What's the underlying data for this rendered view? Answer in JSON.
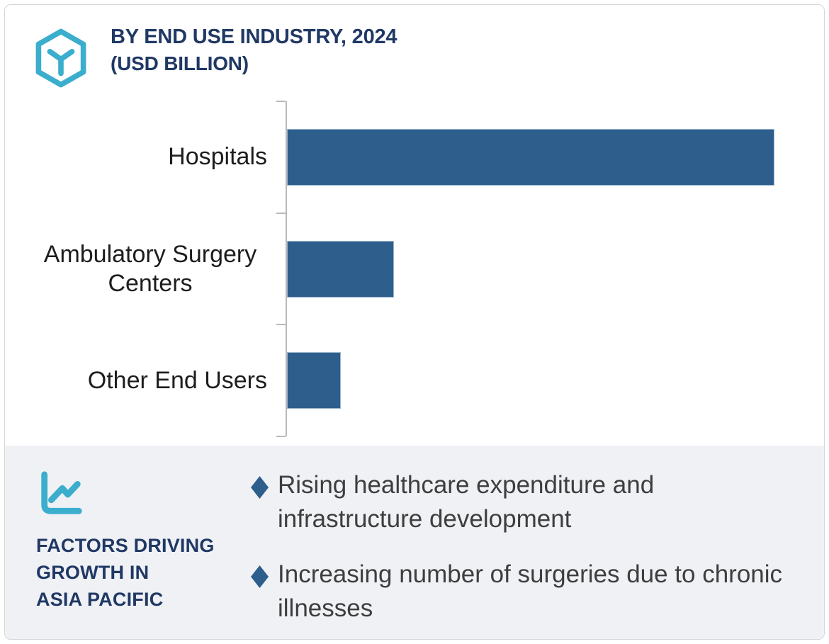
{
  "header": {
    "title_line1": "BY END USE INDUSTRY, 2024",
    "title_line2": "(USD BILLION)",
    "logo_icon": "hexagon-y-icon"
  },
  "chart_data": {
    "type": "bar",
    "orientation": "horizontal",
    "title": "BY END USE INDUSTRY, 2024",
    "subtitle": "(USD BILLION)",
    "categories": [
      "Hospitals",
      "Ambulatory Surgery Centers",
      "Other End Users"
    ],
    "values": [
      100,
      22,
      11
    ],
    "value_scale": "relative bar length, % of largest bar (x-axis has no tick labels or value labels)",
    "xlabel": "",
    "ylabel": "",
    "grid": false,
    "legend": false,
    "bar_color": "#2d5e8c",
    "axis_color": "#b9b9b9"
  },
  "factors": {
    "icon": "line-chart-icon",
    "title_lines": [
      "FACTORS DRIVING",
      "GROWTH IN",
      "ASIA PACIFIC"
    ],
    "bullet_icon": "diamond-bullet-icon",
    "bullets": [
      {
        "lines": [
          "Rising healthcare expenditure and",
          "infrastructure development"
        ]
      },
      {
        "lines": [
          "Increasing number of surgeries due to chronic",
          "illnesses"
        ]
      }
    ]
  },
  "colors": {
    "navy": "#203864",
    "teal": "#3badcd",
    "bar_blue": "#2d5e8c",
    "panel_bg": "#eff1f5",
    "axis_gray": "#b9b9b9",
    "card_border": "#d6d6d6",
    "label_text": "#1d1d1d",
    "body_text": "#3e3e3e"
  }
}
